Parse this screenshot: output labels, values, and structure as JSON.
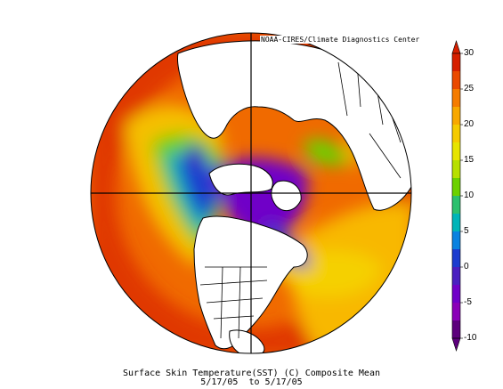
{
  "credit": "NOAA-CIRES/Climate Diagnostics Center",
  "caption": {
    "line1": "Surface Skin Temperature(SST) (C) Composite Mean",
    "line2": "5/17/05  to 5/17/05"
  },
  "colorbar": {
    "ticks": [
      "30",
      "25",
      "20",
      "15",
      "10",
      "5",
      "0",
      "-5",
      "-10"
    ],
    "colors": [
      "#d62000",
      "#ea4a00",
      "#f57c00",
      "#f8a800",
      "#f5cb00",
      "#e7e400",
      "#b7e000",
      "#6cd100",
      "#2cc06e",
      "#00b4b8",
      "#0a82e0",
      "#1c3ccf",
      "#4a1fc0",
      "#7000c8",
      "#8a00b8",
      "#5c007c"
    ]
  }
}
